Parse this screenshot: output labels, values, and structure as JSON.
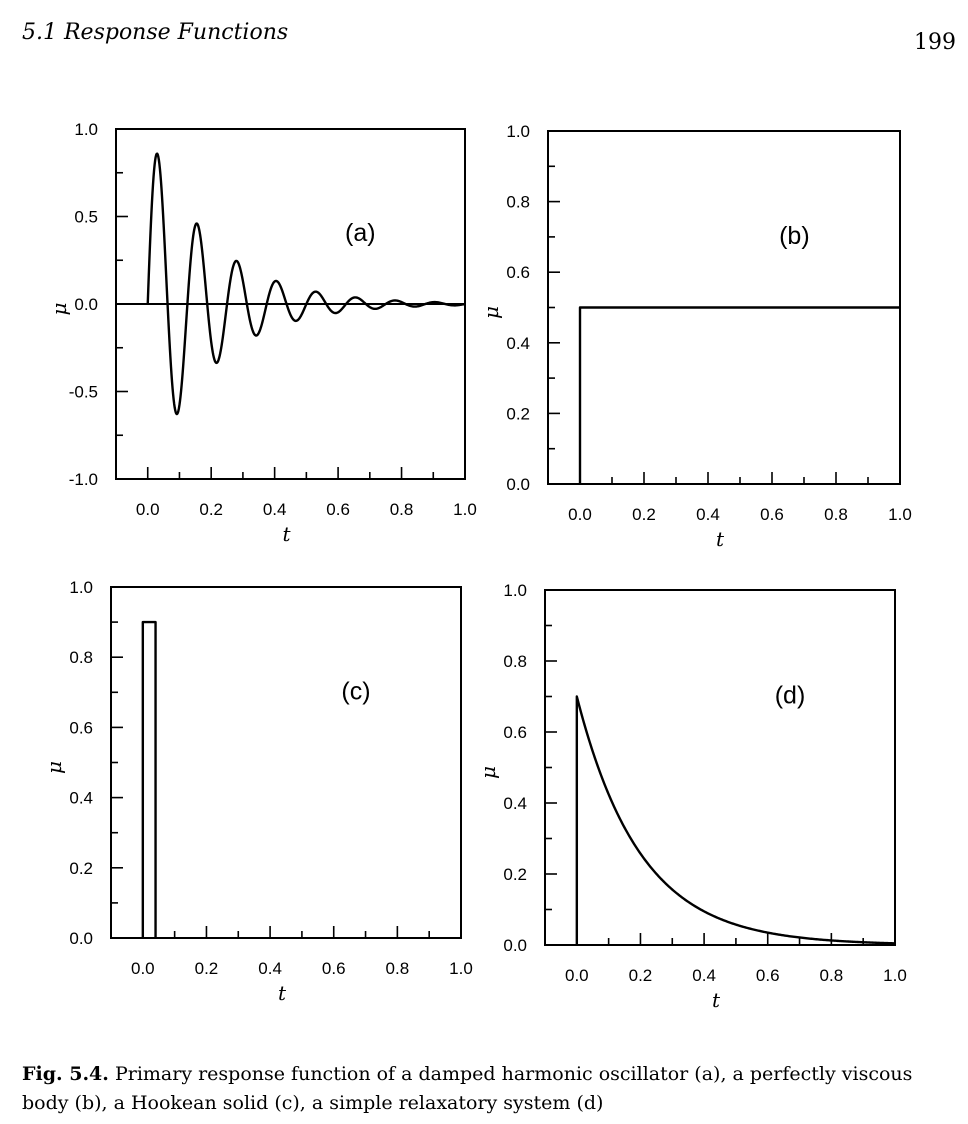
{
  "header": {
    "section": "5.1  Response Functions",
    "page_number": "199"
  },
  "caption": {
    "label": "Fig. 5.4.",
    "text": "Primary response function of a damped harmonic oscillator (a), a perfectly viscous body (b), a Hookean solid (c), a simple relaxatory system (d)"
  },
  "chart_data": [
    {
      "id": "a",
      "type": "line",
      "panel_label": "(a)",
      "xlabel": "t",
      "ylabel": "μ",
      "xlim": [
        -0.1,
        1.0
      ],
      "ylim": [
        -1.0,
        1.0
      ],
      "xticks": [
        "0.0",
        "0.2",
        "0.4",
        "0.6",
        "0.8",
        "1.0"
      ],
      "xtick_values": [
        0,
        0.2,
        0.4,
        0.6,
        0.8,
        1.0
      ],
      "yticks": [
        "-1.0",
        "-0.5",
        "0.0",
        "0.5",
        "1.0"
      ],
      "ytick_values": [
        -1.0,
        -0.5,
        0.0,
        0.5,
        1.0
      ],
      "zero_line": true,
      "series": [
        {
          "form": "damped_oscillation",
          "amplitude": 1.0,
          "decay_rate": 5.0,
          "period": 0.125,
          "x_start": 0.0,
          "x_end": 1.0
        }
      ]
    },
    {
      "id": "b",
      "type": "line",
      "panel_label": "(b)",
      "xlabel": "t",
      "ylabel": "μ",
      "xlim": [
        -0.1,
        1.0
      ],
      "ylim": [
        0.0,
        1.0
      ],
      "xticks": [
        "0.0",
        "0.2",
        "0.4",
        "0.6",
        "0.8",
        "1.0"
      ],
      "xtick_values": [
        0,
        0.2,
        0.4,
        0.6,
        0.8,
        1.0
      ],
      "yticks": [
        "0.0",
        "0.2",
        "0.4",
        "0.6",
        "0.8",
        "1.0"
      ],
      "ytick_values": [
        0,
        0.2,
        0.4,
        0.6,
        0.8,
        1.0
      ],
      "series": [
        {
          "x": [
            0.0,
            0.0,
            1.0
          ],
          "y": [
            0.0,
            0.5,
            0.5
          ]
        }
      ]
    },
    {
      "id": "c",
      "type": "line",
      "panel_label": "(c)",
      "xlabel": "t",
      "ylabel": "μ",
      "xlim": [
        -0.1,
        1.0
      ],
      "ylim": [
        0.0,
        1.0
      ],
      "xticks": [
        "0.0",
        "0.2",
        "0.4",
        "0.6",
        "0.8",
        "1.0"
      ],
      "xtick_values": [
        0,
        0.2,
        0.4,
        0.6,
        0.8,
        1.0
      ],
      "yticks": [
        "0.0",
        "0.2",
        "0.4",
        "0.6",
        "0.8",
        "1.0"
      ],
      "ytick_values": [
        0,
        0.2,
        0.4,
        0.6,
        0.8,
        1.0
      ],
      "series": [
        {
          "x": [
            0.0,
            0.0,
            0.04,
            0.04
          ],
          "y": [
            0.0,
            0.9,
            0.9,
            0.0
          ]
        }
      ]
    },
    {
      "id": "d",
      "type": "line",
      "panel_label": "(d)",
      "xlabel": "t",
      "ylabel": "μ",
      "xlim": [
        -0.1,
        1.0
      ],
      "ylim": [
        0.0,
        1.0
      ],
      "xticks": [
        "0.0",
        "0.2",
        "0.4",
        "0.6",
        "0.8",
        "1.0"
      ],
      "xtick_values": [
        0,
        0.2,
        0.4,
        0.6,
        0.8,
        1.0
      ],
      "yticks": [
        "0.0",
        "0.2",
        "0.4",
        "0.6",
        "0.8",
        "1.0"
      ],
      "ytick_values": [
        0,
        0.2,
        0.4,
        0.6,
        0.8,
        1.0
      ],
      "series": [
        {
          "form": "exponential_decay",
          "amplitude": 0.7,
          "decay_rate": 5.0,
          "x_start": 0.0,
          "x_end": 1.0
        }
      ]
    }
  ]
}
